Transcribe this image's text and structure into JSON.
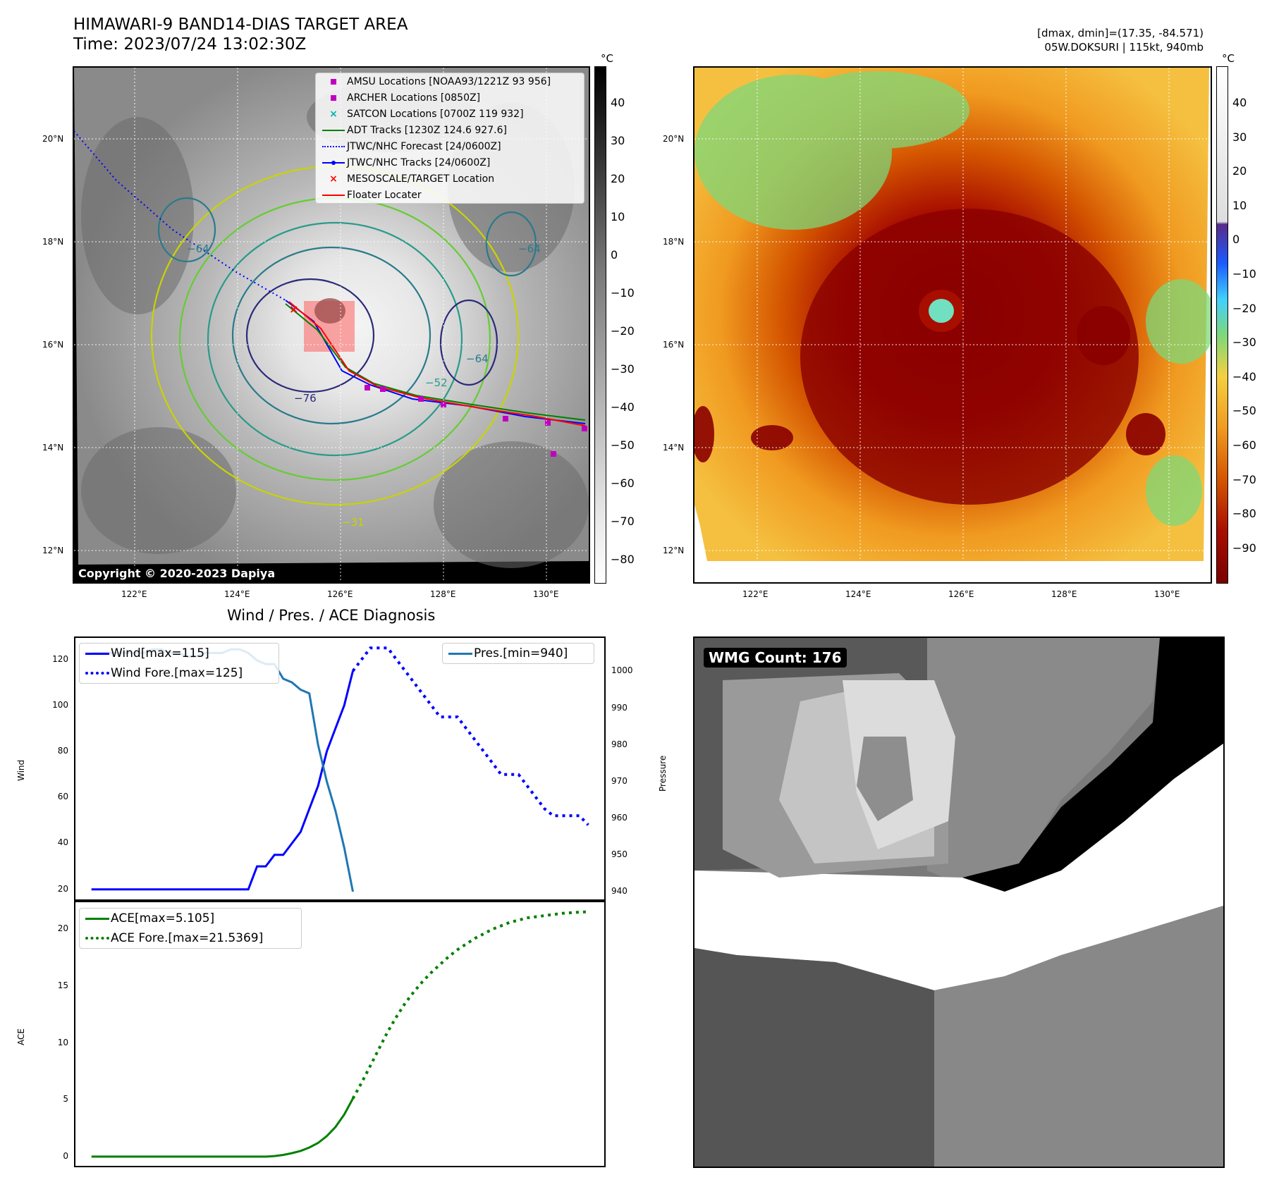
{
  "header": {
    "title_line1": "HIMAWARI-9 BAND14-DIAS TARGET AREA",
    "title_line2": "Time: 2023/07/24 13:02:30Z",
    "right_line1": "[dmax, dmin]=(17.35, -84.571)",
    "right_line2": "05W.DOKSURI | 115kt, 940mb"
  },
  "maps": {
    "lat_labels": [
      "20°N",
      "18°N",
      "16°N",
      "14°N",
      "12°N"
    ],
    "lon_labels": [
      "122°E",
      "124°E",
      "126°E",
      "128°E",
      "130°E"
    ],
    "copyright": "Copyright © 2020-2023 Dapiya",
    "colorbar_unit": "°C",
    "gray_colorbar_ticks": [
      "40",
      "30",
      "20",
      "10",
      "0",
      "−10",
      "−20",
      "−30",
      "−40",
      "−50",
      "−60",
      "−70",
      "−80"
    ],
    "color_colorbar_ticks": [
      "40",
      "30",
      "20",
      "10",
      "0",
      "−10",
      "−20",
      "−30",
      "−40",
      "−50",
      "−60",
      "−70",
      "−80",
      "−90"
    ],
    "contour_labels": [
      "−76",
      "−64",
      "−64",
      "−64",
      "−52",
      "−31"
    ],
    "legend": [
      {
        "label": "AMSU Locations [NOAA93/1221Z 93 956]",
        "color": "#c000c0",
        "symbol": "square"
      },
      {
        "label": "ARCHER Locations [0850Z]",
        "color": "#c000c0",
        "symbol": "square"
      },
      {
        "label": "SATCON Locations [0700Z 119 932]",
        "color": "#00b0b0",
        "symbol": "x"
      },
      {
        "label": "ADT Tracks [1230Z 124.6 927.6]",
        "color": "#007f00",
        "symbol": "line"
      },
      {
        "label": "JTWC/NHC Forecast [24/0600Z]",
        "color": "#0000ff",
        "symbol": "dotted"
      },
      {
        "label": "JTWC/NHC Tracks [24/0600Z]",
        "color": "#0000ff",
        "symbol": "line-dot"
      },
      {
        "label": "MESOSCALE/TARGET Location",
        "color": "#ff0000",
        "symbol": "x"
      },
      {
        "label": "Floater Locater",
        "color": "#ff0000",
        "symbol": "line"
      }
    ]
  },
  "diagnosis": {
    "title": "Wind / Pres. / ACE Diagnosis",
    "wind_ylabel": "Wind",
    "pres_ylabel": "Pressure",
    "ace_ylabel": "ACE",
    "wind_legend": [
      "Wind[max=115]",
      "Wind Fore.[max=125]"
    ],
    "pres_legend": [
      "Pres.[min=940]"
    ],
    "ace_legend": [
      "ACE[max=5.105]",
      "ACE Fore.[max=21.5369]"
    ]
  },
  "wmg": {
    "label": "WMG Count: 176"
  },
  "colors": {
    "wind": "#0000ff",
    "pressure": "#1f77b4",
    "ace": "#008000"
  },
  "chart_data": [
    {
      "type": "line",
      "name": "wind-pressure",
      "x": [
        0,
        1,
        2,
        3,
        4,
        5,
        6,
        7,
        8,
        9,
        10,
        11,
        12,
        13,
        14,
        15,
        16,
        17,
        18,
        19,
        20,
        21,
        22,
        23,
        24,
        25,
        26,
        27,
        28,
        29,
        30,
        31,
        32,
        33,
        34,
        35,
        36,
        37,
        38,
        39,
        40,
        41,
        42,
        43,
        44,
        45,
        46,
        47,
        48,
        49,
        50,
        51,
        52,
        53,
        54,
        55,
        56,
        57
      ],
      "series": [
        {
          "name": "Wind[max=115]",
          "axis": "left",
          "values": [
            20,
            20,
            20,
            20,
            20,
            20,
            20,
            20,
            20,
            20,
            20,
            20,
            20,
            20,
            20,
            20,
            20,
            20,
            20,
            30,
            30,
            35,
            35,
            40,
            45,
            55,
            65,
            80,
            90,
            100,
            115,
            null,
            null,
            null,
            null,
            null,
            null,
            null,
            null,
            null,
            null,
            null,
            null,
            null,
            null,
            null,
            null,
            null,
            null,
            null,
            null,
            null,
            null,
            null,
            null,
            null,
            null,
            null
          ]
        },
        {
          "name": "Wind Fore.[max=125]",
          "axis": "left",
          "values": [
            null,
            null,
            null,
            null,
            null,
            null,
            null,
            null,
            null,
            null,
            null,
            null,
            null,
            null,
            null,
            null,
            null,
            null,
            null,
            null,
            null,
            null,
            null,
            null,
            null,
            null,
            null,
            null,
            null,
            null,
            115,
            120,
            125,
            125,
            125,
            120,
            115,
            110,
            105,
            100,
            95,
            95,
            95,
            90,
            85,
            80,
            75,
            70,
            70,
            70,
            65,
            60,
            55,
            52,
            52,
            52,
            52,
            48
          ]
        },
        {
          "name": "Pres.[min=940]",
          "axis": "right",
          "values": [
            1005,
            1005,
            1005,
            1005,
            1005,
            1005,
            1005,
            1006,
            1006,
            1005,
            1005,
            1004,
            1004,
            1005,
            1005,
            1005,
            1006,
            1006,
            1005,
            1003,
            1002,
            1002,
            998,
            997,
            995,
            994,
            980,
            970,
            962,
            952,
            940,
            null,
            null,
            null,
            null,
            null,
            null,
            null,
            null,
            null,
            null,
            null,
            null,
            null,
            null,
            null,
            null,
            null,
            null,
            null,
            null,
            null,
            null,
            null,
            null,
            null,
            null,
            null
          ]
        }
      ],
      "ylabel": "Wind",
      "ylim": [
        15,
        130
      ],
      "y_ticks": [
        20,
        40,
        60,
        80,
        100,
        120
      ],
      "y2label": "Pressure",
      "y2lim": [
        937.5,
        1009.5
      ],
      "y2_ticks": [
        940,
        950,
        960,
        970,
        980,
        990,
        1000
      ]
    },
    {
      "type": "line",
      "name": "ace",
      "x": [
        0,
        1,
        2,
        3,
        4,
        5,
        6,
        7,
        8,
        9,
        10,
        11,
        12,
        13,
        14,
        15,
        16,
        17,
        18,
        19,
        20,
        21,
        22,
        23,
        24,
        25,
        26,
        27,
        28,
        29,
        30,
        31,
        32,
        33,
        34,
        35,
        36,
        37,
        38,
        39,
        40,
        41,
        42,
        43,
        44,
        45,
        46,
        47,
        48,
        49,
        50,
        51,
        52,
        53,
        54,
        55,
        56,
        57
      ],
      "series": [
        {
          "name": "ACE[max=5.105]",
          "values": [
            0,
            0,
            0,
            0,
            0,
            0,
            0,
            0,
            0,
            0,
            0,
            0,
            0,
            0,
            0,
            0,
            0,
            0,
            0,
            0,
            0,
            0.05,
            0.15,
            0.3,
            0.5,
            0.8,
            1.2,
            1.8,
            2.6,
            3.7,
            5.105,
            null,
            null,
            null,
            null,
            null,
            null,
            null,
            null,
            null,
            null,
            null,
            null,
            null,
            null,
            null,
            null,
            null,
            null,
            null,
            null,
            null,
            null,
            null,
            null,
            null,
            null,
            null
          ]
        },
        {
          "name": "ACE Fore.[max=21.5369]",
          "values": [
            null,
            null,
            null,
            null,
            null,
            null,
            null,
            null,
            null,
            null,
            null,
            null,
            null,
            null,
            null,
            null,
            null,
            null,
            null,
            null,
            null,
            null,
            null,
            null,
            null,
            null,
            null,
            null,
            null,
            null,
            5.105,
            6.5,
            8,
            9.5,
            11,
            12.3,
            13.5,
            14.5,
            15.4,
            16.2,
            16.9,
            17.6,
            18.2,
            18.7,
            19.2,
            19.6,
            20,
            20.3,
            20.6,
            20.8,
            21,
            21.1,
            21.2,
            21.3,
            21.4,
            21.45,
            21.5,
            21.5369
          ]
        }
      ],
      "ylabel": "ACE",
      "ylim": [
        -1,
        22.5
      ],
      "y_ticks": [
        0,
        5,
        10,
        15,
        20
      ]
    }
  ]
}
